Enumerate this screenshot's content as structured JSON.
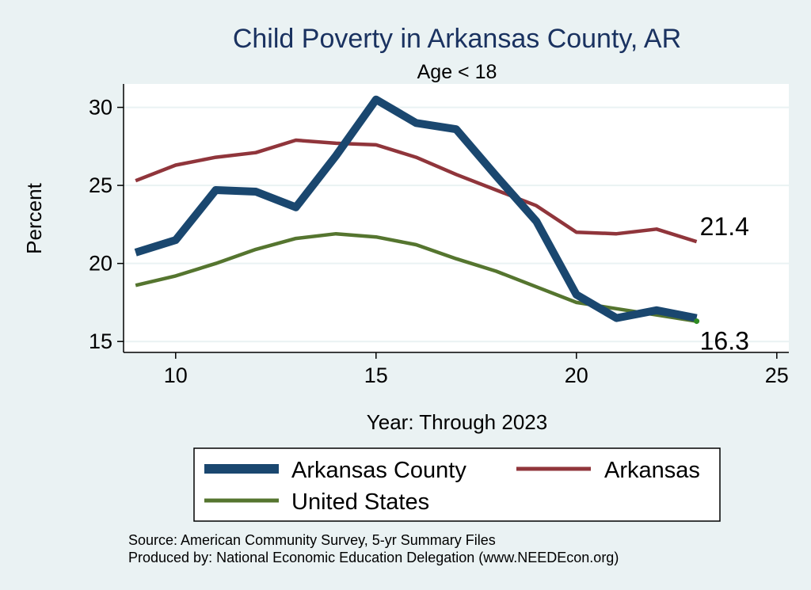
{
  "chart_data": {
    "type": "line",
    "title": "Child Poverty in Arkansas County, AR",
    "subtitle": "Age < 18",
    "xlabel": "Year: Through 2023",
    "ylabel": "Percent",
    "xlim": [
      8.7,
      25.3
    ],
    "ylim": [
      14.3,
      31.5
    ],
    "x_ticks": [
      10,
      15,
      20,
      25
    ],
    "y_ticks": [
      15,
      20,
      25,
      30
    ],
    "grid": true,
    "x": [
      9,
      10,
      11,
      12,
      13,
      14,
      15,
      16,
      17,
      18,
      19,
      20,
      21,
      22,
      23
    ],
    "series": [
      {
        "name": "Arkansas County",
        "color": "#1a476f",
        "values": [
          20.7,
          21.5,
          24.7,
          24.6,
          23.6,
          26.9,
          30.5,
          29.0,
          28.6,
          25.6,
          22.7,
          18.0,
          16.5,
          17.0,
          16.5
        ]
      },
      {
        "name": "Arkansas",
        "color": "#90353b",
        "values": [
          25.3,
          26.3,
          26.8,
          27.1,
          27.9,
          27.7,
          27.6,
          26.8,
          25.7,
          24.7,
          23.7,
          22.0,
          21.9,
          22.2,
          21.4
        ]
      },
      {
        "name": "United States",
        "color": "#55752f",
        "values": [
          18.6,
          19.2,
          20.0,
          20.9,
          21.6,
          21.9,
          21.7,
          21.2,
          20.3,
          19.5,
          18.5,
          17.5,
          17.1,
          16.7,
          16.3
        ]
      }
    ],
    "end_labels": [
      {
        "series": "Arkansas",
        "text": "21.4"
      },
      {
        "series": "United States",
        "text": "16.3"
      }
    ],
    "legend": {
      "placement": "bottom",
      "entries": [
        "Arkansas County",
        "Arkansas",
        "United States"
      ]
    },
    "notes": [
      "Source: American Community Survey, 5-yr Summary Files",
      "Produced by: National Economic Education Delegation (www.NEEDEcon.org)"
    ]
  },
  "colors": {
    "background": "#eaf2f3",
    "plot_background": "#ffffff",
    "grid": "#eaf2f3",
    "title": "#1a3260"
  }
}
